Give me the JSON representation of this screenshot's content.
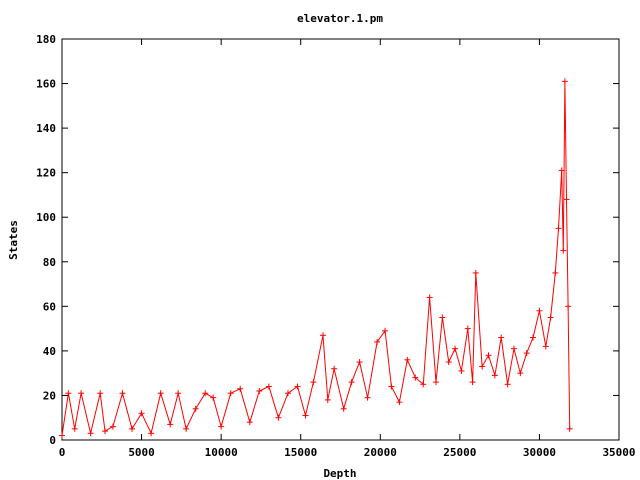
{
  "chart_data": {
    "type": "line",
    "title": "elevator.1.pm",
    "xlabel": "Depth",
    "ylabel": "States",
    "xlim": [
      0,
      35000
    ],
    "ylim": [
      0,
      180
    ],
    "xticks": [
      0,
      5000,
      10000,
      15000,
      20000,
      25000,
      30000,
      35000
    ],
    "yticks": [
      0,
      20,
      40,
      60,
      80,
      100,
      120,
      140,
      160,
      180
    ],
    "grid": false,
    "legend": "none",
    "marker": "plus",
    "color": "#ff0000",
    "series": [
      {
        "x": [
          0,
          400,
          800,
          1200,
          1800,
          2400,
          2700,
          3200,
          3800,
          4400,
          5000,
          5600,
          6200,
          6800,
          7300,
          7800,
          8400,
          9000,
          9500,
          10000,
          10600,
          11200,
          11800,
          12400,
          13000,
          13600,
          14200,
          14800,
          15300,
          15800,
          16400,
          16700,
          17100,
          17700,
          18200,
          18700,
          19200,
          19800,
          20300,
          20700,
          21200,
          21700,
          22200,
          22700,
          23100,
          23500,
          23900,
          24300,
          24700,
          25100,
          25500,
          25800,
          26000,
          26400,
          26800,
          27200,
          27600,
          28000,
          28400,
          28800,
          29200,
          29600,
          30000,
          30400,
          30700,
          31000,
          31200,
          31400,
          31500,
          31600,
          31700,
          31800,
          31900
        ],
        "y": [
          2,
          21,
          5,
          21,
          3,
          21,
          4,
          6,
          21,
          5,
          12,
          3,
          21,
          7,
          21,
          5,
          14,
          21,
          19,
          6,
          21,
          23,
          8,
          22,
          24,
          10,
          21,
          24,
          11,
          26,
          47,
          18,
          32,
          14,
          26,
          35,
          19,
          44,
          49,
          24,
          17,
          36,
          28,
          25,
          64,
          26,
          55,
          35,
          41,
          31,
          50,
          26,
          75,
          33,
          38,
          29,
          46,
          25,
          41,
          30,
          39,
          46,
          58,
          42,
          55,
          75,
          95,
          121,
          85,
          161,
          108,
          60,
          5
        ]
      }
    ]
  }
}
